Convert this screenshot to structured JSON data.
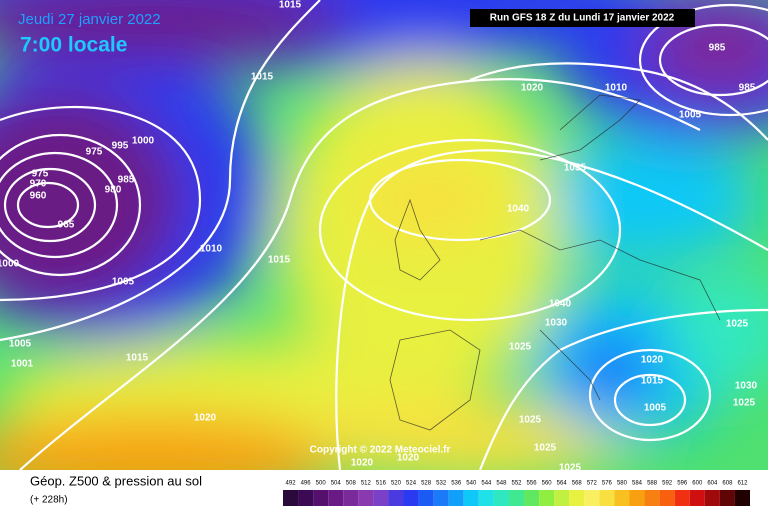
{
  "header": {
    "date": "Jeudi 27 janvier 2022",
    "time": "7:00 locale",
    "run": "Run GFS 18 Z du Lundi 17 janvier 2022"
  },
  "copyright": "Copyright © 2022 Meteociel.fr",
  "footer": {
    "title": "Géop. Z500 & pression au sol",
    "lead": "(+ 228h)"
  },
  "isobar_labels": [
    "1015",
    "1015",
    "1020",
    "1010",
    "1005",
    "985",
    "985",
    "975",
    "995",
    "1000",
    "975",
    "970",
    "960",
    "965",
    "985",
    "980",
    "1010",
    "1015",
    "1005",
    "1000",
    "1005",
    "1001",
    "1015",
    "1035",
    "1040",
    "1040",
    "1030",
    "1025",
    "1025",
    "1020",
    "1015",
    "1005",
    "1030",
    "1025",
    "1020",
    "1025",
    "1025",
    "1025",
    "1020",
    "1020"
  ],
  "scale": {
    "values": [
      492,
      496,
      500,
      504,
      508,
      512,
      516,
      520,
      524,
      528,
      532,
      536,
      540,
      544,
      548,
      552,
      556,
      560,
      564,
      568,
      572,
      576,
      580,
      584,
      588,
      592,
      596,
      600,
      604,
      608,
      612
    ],
    "colors": [
      "#2a0a3a",
      "#3c0a55",
      "#55106e",
      "#6a1a85",
      "#7a2a9a",
      "#8a3ab0",
      "#7a40c8",
      "#4a3ae0",
      "#2a3af0",
      "#1a5af5",
      "#1a7af8",
      "#10a0fa",
      "#10c8f8",
      "#20e0e8",
      "#30e8c0",
      "#40e890",
      "#60e860",
      "#90ee40",
      "#c0f040",
      "#e8f040",
      "#f8f060",
      "#f8e040",
      "#f8c020",
      "#f8a010",
      "#f88010",
      "#f86010",
      "#f03010",
      "#d01010",
      "#a00a0a",
      "#600505",
      "#200000"
    ]
  }
}
